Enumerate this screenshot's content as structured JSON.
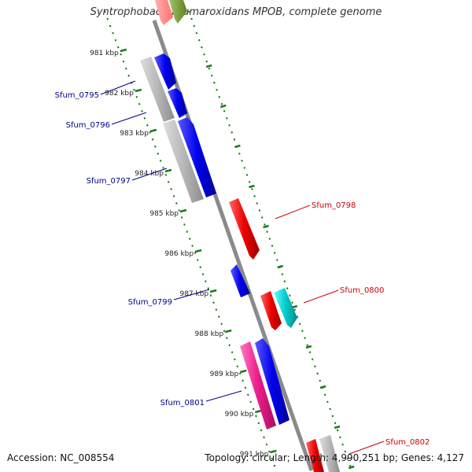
{
  "title": "Syntrophobacter fumaroxidans MPOB, complete genome",
  "footer": {
    "accession": "Accession: NC_008554",
    "summary": "Topology: circular; Length: 4,990,251 bp; Genes: 4,127"
  },
  "colors": {
    "backbone": "#888888",
    "ruler": "#1a7a1a",
    "label_left": "#00008b",
    "label_right": "#cc0000",
    "gene_blue": "#0000ee",
    "gene_red": "#ee0000",
    "gene_gray": "#b0b0b0",
    "gene_cyan": "#00cccc",
    "gene_pink": "#ee1a8c",
    "gene_green": "#6b8e23"
  },
  "ruler_ticks": [
    {
      "kbp": 981,
      "label": "981 kbp"
    },
    {
      "kbp": 982,
      "label": "982 kbp"
    },
    {
      "kbp": 983,
      "label": "983 kbp"
    },
    {
      "kbp": 984,
      "label": "984 kbp"
    },
    {
      "kbp": 985,
      "label": "985 kbp"
    },
    {
      "kbp": 986,
      "label": "986 kbp"
    },
    {
      "kbp": 987,
      "label": "987 kbp"
    },
    {
      "kbp": 988,
      "label": "988 kbp"
    },
    {
      "kbp": 989,
      "label": "989 kbp"
    },
    {
      "kbp": 990,
      "label": "990 kbp"
    },
    {
      "kbp": 991,
      "label": "991 kbp"
    }
  ],
  "gene_labels": [
    {
      "id": "Sfum_0795",
      "side": "left"
    },
    {
      "id": "Sfum_0796",
      "side": "left"
    },
    {
      "id": "Sfum_0797",
      "side": "left"
    },
    {
      "id": "Sfum_0798",
      "side": "right"
    },
    {
      "id": "Sfum_0799",
      "side": "left"
    },
    {
      "id": "Sfum_0800",
      "side": "right"
    },
    {
      "id": "Sfum_0801",
      "side": "left"
    },
    {
      "id": "Sfum_0802",
      "side": "right"
    }
  ]
}
